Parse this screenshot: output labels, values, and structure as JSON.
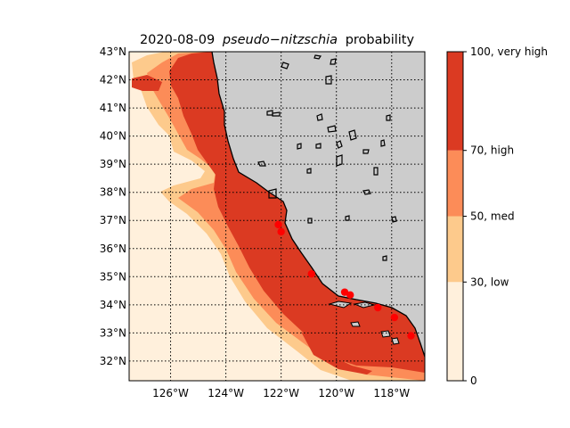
{
  "chart_data": {
    "type": "heatmap",
    "title_date": "2020-08-09",
    "title_species": "pseudo−nitzschia",
    "title_suffix": "probability",
    "x_ticks": [
      "126°W",
      "124°W",
      "122°W",
      "120°W",
      "118°W"
    ],
    "x_tick_values": [
      -126,
      -124,
      -122,
      -120,
      -118
    ],
    "y_ticks": [
      "32°N",
      "33°N",
      "34°N",
      "35°N",
      "36°N",
      "37°N",
      "38°N",
      "39°N",
      "40°N",
      "41°N",
      "42°N",
      "43°N"
    ],
    "y_tick_values": [
      32,
      33,
      34,
      35,
      36,
      37,
      38,
      39,
      40,
      41,
      42,
      43
    ],
    "xlim": [
      -127.5,
      -116.8
    ],
    "ylim": [
      31.3,
      43.0
    ],
    "grid": true,
    "land_color": "#cccccc",
    "colorbar": {
      "levels": [
        0,
        30,
        50,
        70,
        100
      ],
      "labels": [
        "0",
        "30, low",
        "50, med",
        "70, high",
        "100, very high"
      ],
      "colors": [
        "#fff0dc",
        "#fdca8c",
        "#fc8c58",
        "#db3a22"
      ]
    },
    "station_color": "#ff0000",
    "stations": [
      {
        "lon": -122.1,
        "lat": 36.85
      },
      {
        "lon": -122.0,
        "lat": 36.6
      },
      {
        "lon": -120.9,
        "lat": 35.1
      },
      {
        "lon": -119.7,
        "lat": 34.45
      },
      {
        "lon": -119.5,
        "lat": 34.35
      },
      {
        "lon": -118.5,
        "lat": 33.9
      },
      {
        "lon": -117.9,
        "lat": 33.55
      },
      {
        "lon": -117.3,
        "lat": 32.9
      }
    ]
  }
}
